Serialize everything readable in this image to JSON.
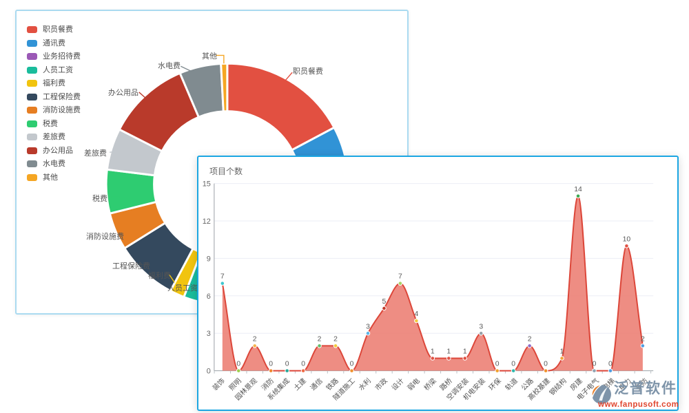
{
  "chart_data": [
    {
      "type": "pie",
      "subtype": "donut",
      "legend_position": "left",
      "slices": [
        {
          "label": "职员餐费",
          "color": "#e25041",
          "angle_deg": 62,
          "pct": 17.2
        },
        {
          "label": "通讯费",
          "color": "#3193d6",
          "angle_deg": 38,
          "pct": 10.6
        },
        {
          "label": "业务招待费",
          "color": "#9b59b6",
          "angle_deg": 52,
          "pct": 14.4
        },
        {
          "label": "人员工资",
          "color": "#1abc9c",
          "angle_deg": 49,
          "pct": 13.6
        },
        {
          "label": "福利费",
          "color": "#f1c40f",
          "angle_deg": 7,
          "pct": 1.9
        },
        {
          "label": "工程保险费",
          "color": "#34495e",
          "angle_deg": 30,
          "pct": 8.3
        },
        {
          "label": "消防设施费",
          "color": "#e67e22",
          "angle_deg": 18,
          "pct": 5.0
        },
        {
          "label": "税费",
          "color": "#2ecc71",
          "angle_deg": 21,
          "pct": 5.8
        },
        {
          "label": "差旅费",
          "color": "#c3c8cd",
          "angle_deg": 20,
          "pct": 5.6
        },
        {
          "label": "办公用品",
          "color": "#b93a2b",
          "angle_deg": 40,
          "pct": 11.1
        },
        {
          "label": "水电费",
          "color": "#808b90",
          "angle_deg": 20,
          "pct": 5.6
        },
        {
          "label": "其他",
          "color": "#f5a623",
          "angle_deg": 3,
          "pct": 0.8
        }
      ]
    },
    {
      "type": "area",
      "title": "项目个数",
      "categories": [
        "装饰",
        "照明",
        "园林景观",
        "消防",
        "系统集成",
        "土建",
        "通信",
        "铁路",
        "隧道施工",
        "水利",
        "市政",
        "设计",
        "弱电",
        "桥梁",
        "路桥",
        "空调安装",
        "机电安装",
        "环保",
        "轨道",
        "公路",
        "高校基建",
        "钢结构",
        "房建",
        "电子电气",
        "电梯",
        "电力",
        "安防"
      ],
      "values": [
        7,
        0,
        2,
        0,
        0,
        0,
        2,
        2,
        0,
        3,
        5,
        7,
        4,
        1,
        1,
        1,
        3,
        0,
        0,
        2,
        0,
        1,
        14,
        0,
        0,
        10,
        2
      ],
      "y_ticks": [
        0,
        3,
        6,
        9,
        12,
        15
      ],
      "ylim": [
        0,
        15
      ],
      "grid": true,
      "line_color": "#dc4639",
      "fill_color": "#ec8176",
      "label_color": "#595959",
      "marker_colors": [
        "#3ec6cf",
        "#9ccf4f",
        "#f5b44d",
        "#f0872e",
        "#27a798",
        "#ef6a45",
        "#62bd6a",
        "#f2ca3c",
        "#f0922e",
        "#5ab4e8",
        "#c0392b",
        "#a8d264",
        "#f2ca3c",
        "#e05244",
        "#e05244",
        "#e05244",
        "#97a1a8",
        "#f0a12e",
        "#2fb8ad",
        "#8f6bc8",
        "#f0922e",
        "#f2a23c",
        "#3ca952",
        "#8fa3b2",
        "#4f9de0",
        "#e05244",
        "#4f9de0"
      ]
    }
  ],
  "watermark": {
    "brand": "泛普软件",
    "url": "www.fanpusoft.com",
    "brand_color": "#7e94a9",
    "url_color": "#e0452e"
  },
  "frame": {
    "back_border_color": "#aadaf0",
    "front_border_color": "#1ba6e2"
  }
}
